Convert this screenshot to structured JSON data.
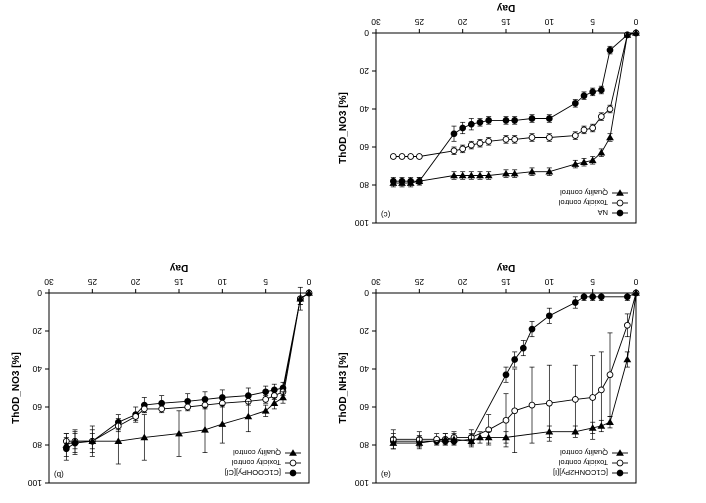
{
  "figure": {
    "rotation_deg": 180
  },
  "chart_data": [
    {
      "type": "line",
      "panel_label": "(a)",
      "xlabel": "Day",
      "ylabel": "ThOD_NH3 [%]",
      "xlim": [
        0,
        30
      ],
      "ylim": [
        0,
        100
      ],
      "xticks": [
        "0",
        "5",
        "10",
        "15",
        "20",
        "25",
        "30"
      ],
      "yticks": [
        "0",
        "20",
        "40",
        "60",
        "80",
        "100"
      ],
      "legend_position": "top-left",
      "series": [
        {
          "name": "[C1CONH2Py][I]",
          "marker": "filled-circle",
          "x": [
            0,
            1,
            4,
            5,
            6,
            7,
            10,
            12,
            13,
            14,
            15,
            19,
            21,
            22,
            23,
            25,
            28
          ],
          "y": [
            0,
            2,
            2,
            2,
            2,
            5,
            12,
            19,
            29,
            35,
            43,
            77,
            78,
            78,
            78,
            78,
            78
          ],
          "err": [
            0,
            2,
            2,
            2,
            2,
            3,
            4,
            4,
            4,
            4,
            4,
            3,
            2,
            2,
            2,
            3,
            4
          ]
        },
        {
          "name": "Toxicity control",
          "marker": "open-circle",
          "x": [
            0,
            1,
            3,
            4,
            5,
            7,
            10,
            12,
            14,
            15,
            17,
            19,
            21,
            22,
            23,
            25,
            28
          ],
          "y": [
            0,
            17,
            43,
            51,
            55,
            56,
            58,
            59,
            62,
            67,
            72,
            76,
            76,
            77,
            77,
            77,
            77
          ],
          "err": [
            0,
            6,
            22,
            20,
            22,
            18,
            20,
            20,
            22,
            14,
            8,
            4,
            3,
            3,
            3,
            4,
            5
          ]
        },
        {
          "name": "Quality control",
          "marker": "filled-triangle-down",
          "x": [
            0,
            1,
            3,
            4,
            5,
            7,
            10,
            15,
            17,
            18,
            19,
            21,
            22,
            25,
            28
          ],
          "y": [
            0,
            35,
            68,
            70,
            71,
            73,
            73,
            76,
            76,
            76,
            78,
            77,
            77,
            79,
            79
          ],
          "err": [
            0,
            4,
            3,
            3,
            3,
            3,
            3,
            3,
            3,
            3,
            3,
            3,
            3,
            3,
            3
          ]
        }
      ]
    },
    {
      "type": "line",
      "panel_label": "(b)",
      "xlabel": "Day",
      "ylabel": "ThOD_NO3 [%]",
      "xlim": [
        0,
        30
      ],
      "ylim": [
        0,
        100
      ],
      "xticks": [
        "0",
        "5",
        "10",
        "15",
        "20",
        "25",
        "30"
      ],
      "yticks": [
        "0",
        "20",
        "40",
        "60",
        "80",
        "100"
      ],
      "legend_position": "top-left",
      "series": [
        {
          "name": "[C1COOHPy][Cl]",
          "marker": "filled-circle",
          "x": [
            0,
            1,
            3,
            4,
            5,
            7,
            10,
            12,
            14,
            17,
            19,
            20,
            22,
            25,
            27,
            28
          ],
          "y": [
            0,
            3,
            50,
            51,
            52,
            54,
            55,
            56,
            57,
            58,
            59,
            64,
            68,
            78,
            79,
            82
          ],
          "err": [
            0,
            6,
            3,
            3,
            3,
            4,
            4,
            4,
            4,
            4,
            4,
            4,
            4,
            6,
            6,
            6
          ]
        },
        {
          "name": "Toxicity control",
          "marker": "open-circle",
          "x": [
            0,
            1,
            3,
            4,
            5,
            7,
            10,
            12,
            14,
            17,
            19,
            20,
            22,
            25,
            27,
            28
          ],
          "y": [
            0,
            3,
            52,
            54,
            56,
            57,
            58,
            59,
            60,
            61,
            61,
            65,
            70,
            78,
            78,
            78
          ],
          "err": [
            0,
            3,
            2,
            2,
            2,
            2,
            2,
            2,
            2,
            2,
            2,
            2,
            3,
            4,
            4,
            4
          ]
        },
        {
          "name": "Quality control",
          "marker": "filled-triangle-down",
          "x": [
            0,
            1,
            3,
            4,
            5,
            7,
            10,
            12,
            15,
            19,
            22,
            25,
            27,
            28
          ],
          "y": [
            0,
            3,
            55,
            58,
            62,
            65,
            69,
            72,
            74,
            76,
            78,
            78,
            78,
            80
          ],
          "err": [
            0,
            3,
            3,
            3,
            3,
            8,
            10,
            12,
            12,
            12,
            12,
            8,
            6,
            6
          ]
        }
      ]
    },
    {
      "type": "line",
      "panel_label": "(c)",
      "xlabel": "Day",
      "ylabel": "ThOD_NO3 [%]",
      "xlim": [
        0,
        30
      ],
      "ylim": [
        0,
        100
      ],
      "xticks": [
        "0",
        "5",
        "10",
        "15",
        "20",
        "25",
        "30"
      ],
      "yticks": [
        "0",
        "20",
        "40",
        "60",
        "80",
        "100"
      ],
      "legend_position": "top-left",
      "series": [
        {
          "name": "NA",
          "marker": "filled-circle",
          "x": [
            0,
            1,
            3,
            4,
            5,
            6,
            7,
            10,
            12,
            14,
            15,
            17,
            18,
            19,
            20,
            21,
            25,
            26,
            27,
            28
          ],
          "y": [
            0,
            1,
            9,
            30,
            31,
            33,
            37,
            45,
            45,
            46,
            46,
            46,
            47,
            48,
            50,
            53,
            78,
            78,
            78,
            78
          ],
          "err": [
            0,
            1,
            2,
            2,
            2,
            2,
            2,
            2,
            2,
            2,
            2,
            2,
            2,
            3,
            3,
            4,
            2,
            2,
            2,
            2
          ]
        },
        {
          "name": "Toxicity control",
          "marker": "open-circle",
          "x": [
            0,
            1,
            3,
            4,
            5,
            6,
            7,
            10,
            12,
            14,
            15,
            17,
            18,
            19,
            20,
            21,
            25,
            26,
            27,
            28
          ],
          "y": [
            0,
            1,
            40,
            44,
            50,
            51,
            54,
            55,
            55,
            56,
            56,
            57,
            58,
            59,
            61,
            62,
            65,
            65,
            65,
            65
          ],
          "err": [
            0,
            1,
            2,
            2,
            2,
            2,
            2,
            2,
            2,
            2,
            2,
            2,
            2,
            2,
            2,
            2,
            0,
            0,
            0,
            0
          ]
        },
        {
          "name": "Quality control",
          "marker": "filled-triangle-down",
          "x": [
            0,
            1,
            3,
            4,
            5,
            6,
            7,
            10,
            12,
            14,
            15,
            17,
            18,
            19,
            20,
            21,
            25,
            26,
            27,
            28
          ],
          "y": [
            0,
            1,
            55,
            63,
            67,
            68,
            69,
            73,
            73,
            74,
            74,
            75,
            75,
            75,
            75,
            75,
            78,
            79,
            79,
            79
          ],
          "err": [
            0,
            1,
            2,
            2,
            2,
            2,
            2,
            2,
            2,
            2,
            2,
            2,
            2,
            2,
            2,
            2,
            2,
            2,
            2,
            2
          ]
        }
      ]
    }
  ]
}
